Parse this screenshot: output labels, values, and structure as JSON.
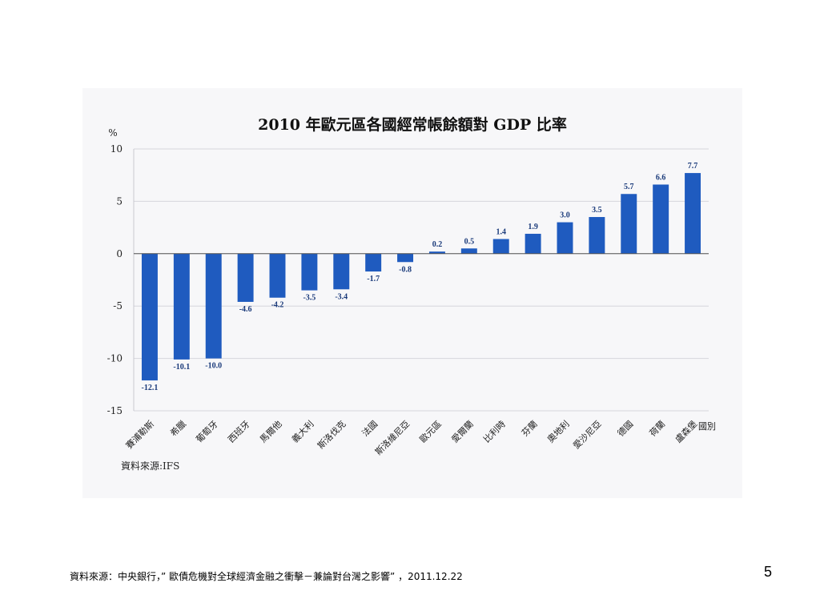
{
  "chart_data": {
    "type": "bar",
    "title": "2010 年歐元區各國經常帳餘額對 GDP 比率",
    "ylabel": "%",
    "xlabel": "國別",
    "ylim": [
      -15,
      10
    ],
    "yticks": [
      10,
      5,
      0,
      -5,
      -10,
      -15
    ],
    "grid": true,
    "categories": [
      "賽浦勒斯",
      "希臘",
      "葡萄牙",
      "西班牙",
      "馬爾他",
      "義大利",
      "斯洛伐克",
      "法國",
      "斯洛維尼亞",
      "歐元區",
      "愛爾蘭",
      "比利時",
      "芬蘭",
      "奧地利",
      "愛沙尼亞",
      "德國",
      "荷蘭",
      "盧森堡"
    ],
    "values": [
      -12.1,
      -10.1,
      -10.0,
      -4.6,
      -4.2,
      -3.5,
      -3.4,
      -1.7,
      -0.8,
      0.2,
      0.5,
      1.4,
      1.9,
      3.0,
      3.5,
      5.7,
      6.6,
      7.7
    ],
    "value_labels": [
      "-12.1",
      "-10.1",
      "-10.0",
      "-4.6",
      "-4.2",
      "-3.5",
      "-3.4",
      "-1.7",
      "-0.8",
      "0.2",
      "0.5",
      "1.4",
      "1.9",
      "3.0",
      "3.5",
      "5.7",
      "6.6",
      "7.7"
    ],
    "bar_color": "#1f5bbf",
    "source": "資料來源:IFS"
  },
  "footer": {
    "citation": "資料來源：中央銀行，” 歐債危機對全球經濟金融之衝擊－兼論對台灣之影響” ，2011.12.22",
    "page_number": "5"
  }
}
